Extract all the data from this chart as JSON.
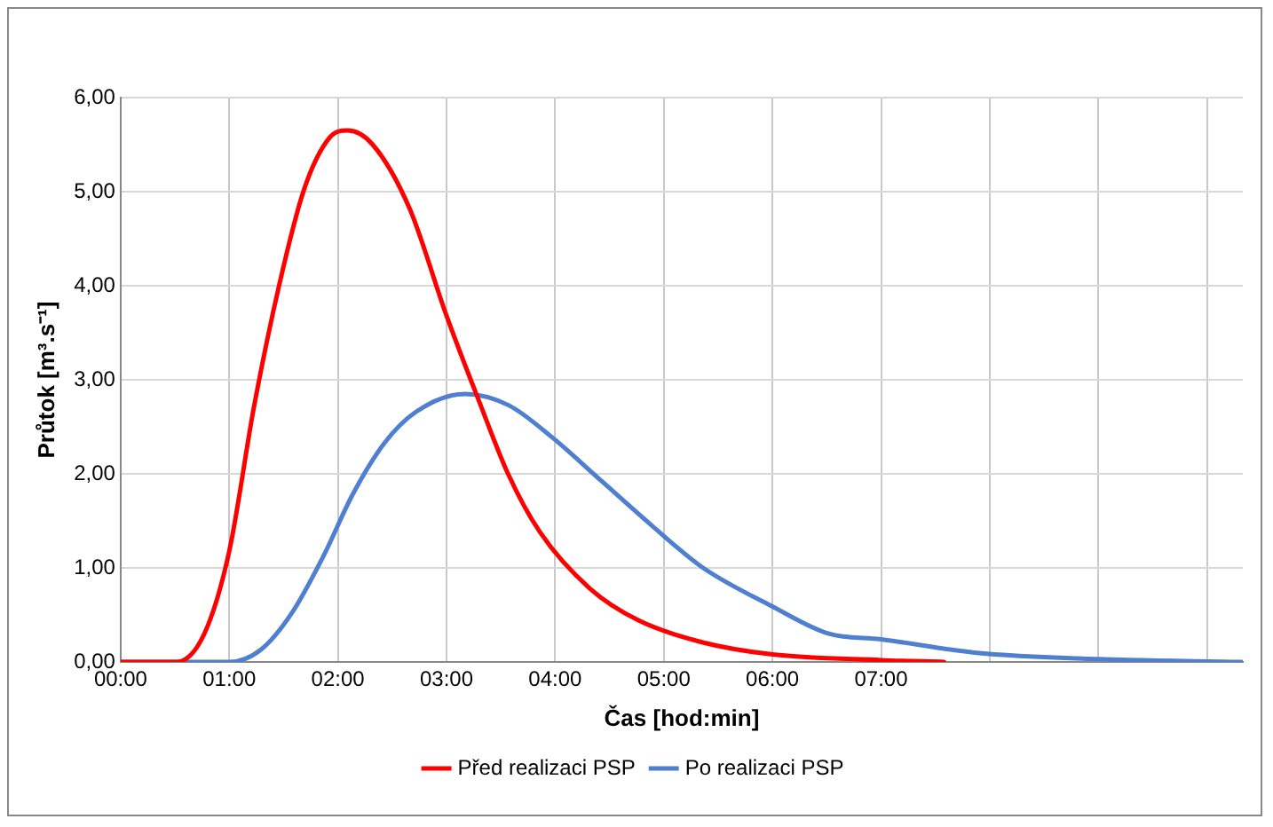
{
  "chart_data": {
    "type": "line",
    "xlabel": "Čas [hod:min]",
    "ylabel": "Průtok [m³.s⁻¹]",
    "xlim": [
      0,
      10.33
    ],
    "xticks": [
      {
        "value": 0,
        "label": "00:00"
      },
      {
        "value": 1,
        "label": "01:00"
      },
      {
        "value": 2,
        "label": "02:00"
      },
      {
        "value": 3,
        "label": "03:00"
      },
      {
        "value": 4,
        "label": "04:00"
      },
      {
        "value": 5,
        "label": "05:00"
      },
      {
        "value": 6,
        "label": "06:00"
      },
      {
        "value": 7,
        "label": "07:00"
      },
      {
        "value": 8,
        "label": null
      },
      {
        "value": 9,
        "label": null
      },
      {
        "value": 10,
        "label": null
      }
    ],
    "ylim": [
      0,
      6
    ],
    "yticks": [
      {
        "value": 0,
        "label": "0,00"
      },
      {
        "value": 1,
        "label": "1,00"
      },
      {
        "value": 2,
        "label": "2,00"
      },
      {
        "value": 3,
        "label": "3,00"
      },
      {
        "value": 4,
        "label": "4,00"
      },
      {
        "value": 5,
        "label": "5,00"
      },
      {
        "value": 6,
        "label": "6,00"
      }
    ],
    "grid": true,
    "legend": "bottom",
    "marker": "none",
    "line_style": "solid",
    "series": [
      {
        "name": "Před realizaci PSP",
        "color": "#ff0000",
        "x": [
          0,
          0.51,
          0.77,
          1.0,
          1.23,
          1.46,
          1.69,
          1.92,
          2.09,
          2.32,
          2.66,
          3.0,
          3.29,
          3.57,
          3.86,
          4.32,
          4.77,
          5.35,
          6.0,
          7.0,
          7.58
        ],
        "values": [
          0,
          0,
          0.3,
          1.18,
          2.73,
          4.01,
          5.03,
          5.57,
          5.65,
          5.5,
          4.82,
          3.68,
          2.8,
          1.99,
          1.38,
          0.78,
          0.44,
          0.21,
          0.08,
          0.02,
          0
        ]
      },
      {
        "name": "Po realizaci PSP",
        "color": "#4f7fcf",
        "x": [
          0,
          1.0,
          1.29,
          1.57,
          1.86,
          2.14,
          2.43,
          2.72,
          3.17,
          3.57,
          3.97,
          4.43,
          4.89,
          5.35,
          6.0,
          6.52,
          7.0,
          7.86,
          9.0,
          10.32
        ],
        "values": [
          0,
          0,
          0.13,
          0.51,
          1.11,
          1.79,
          2.33,
          2.66,
          2.85,
          2.73,
          2.39,
          1.92,
          1.45,
          1.01,
          0.59,
          0.3,
          0.24,
          0.1,
          0.03,
          0
        ]
      }
    ]
  }
}
